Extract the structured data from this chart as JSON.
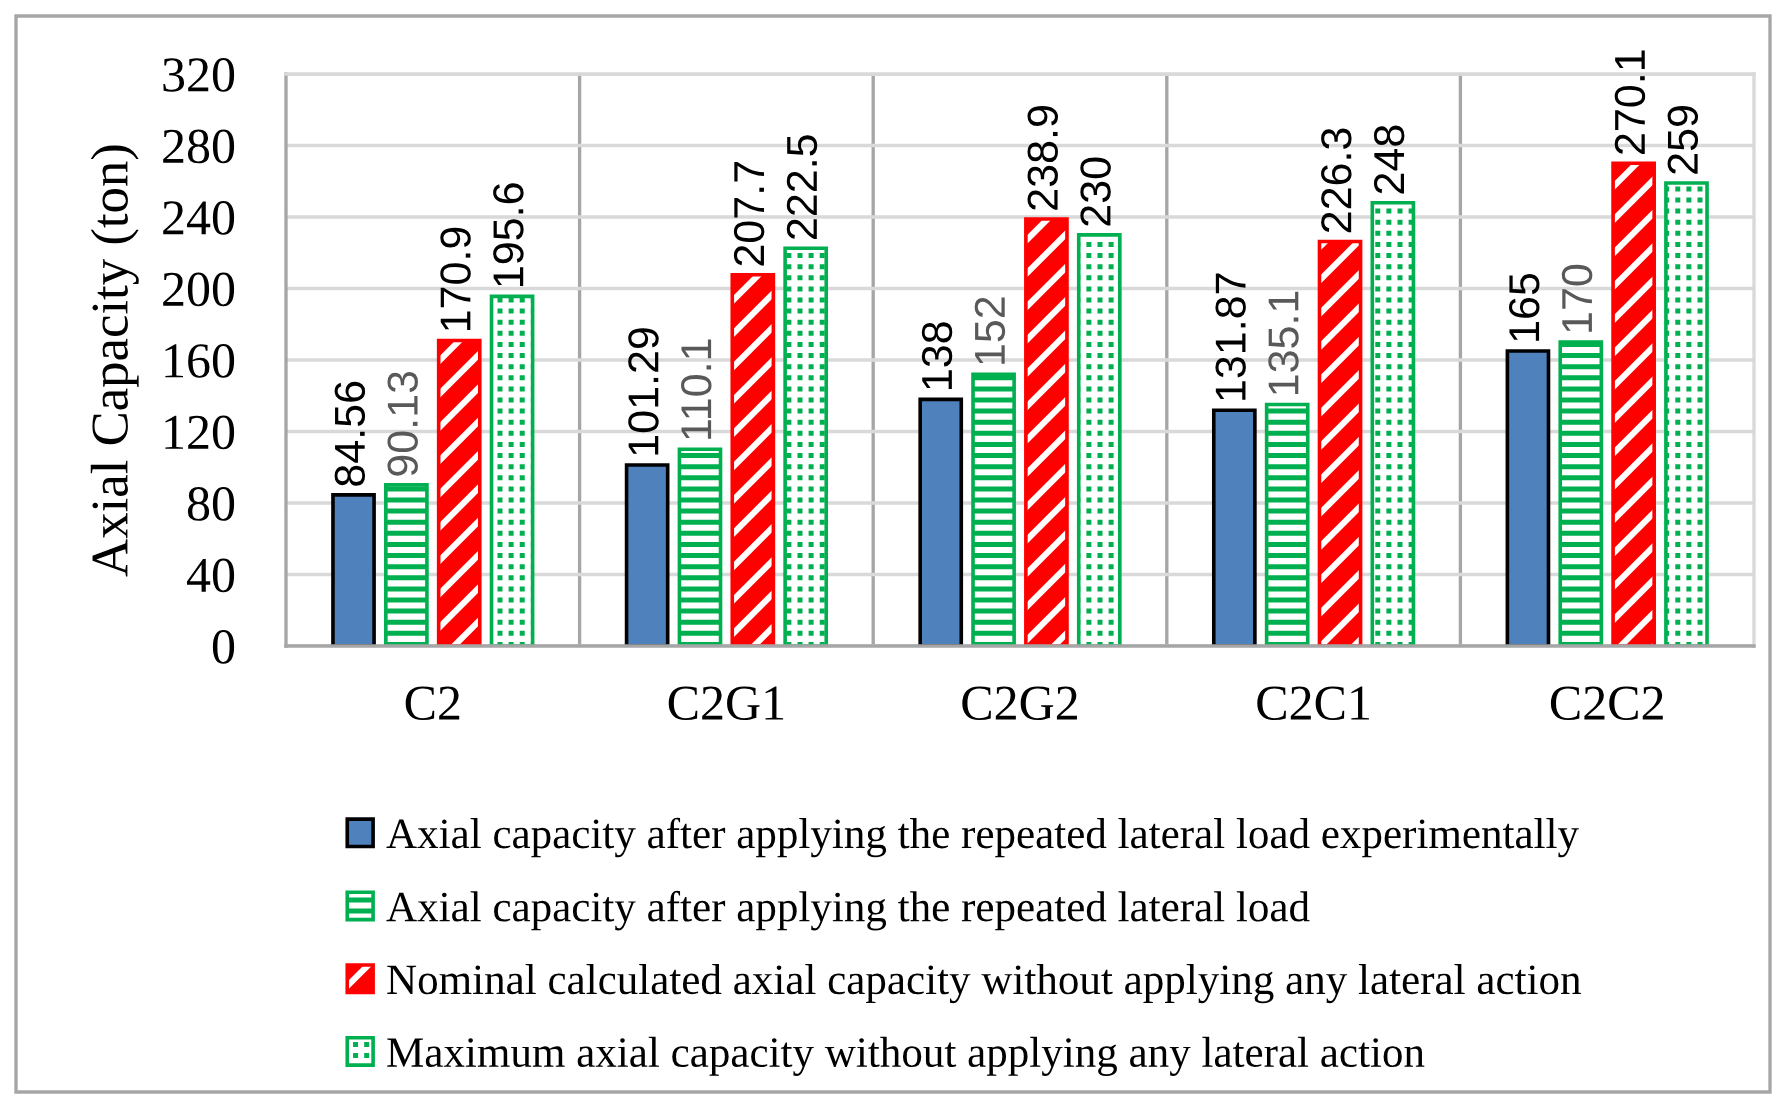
{
  "chart_data": {
    "type": "bar",
    "ylabel": "Axial Capacity (ton)",
    "categories": [
      "C2",
      "C2G1",
      "C2G2",
      "C2C1",
      "C2C2"
    ],
    "series": [
      {
        "name": "Axial capacity after applying the repeated lateral load experimentally",
        "color": "#4f81bd",
        "values": [
          84.56,
          101.29,
          138,
          131.87,
          165
        ]
      },
      {
        "name": "Axial capacity after applying the repeated lateral load",
        "color": "#00b050",
        "values": [
          90.13,
          110.1,
          152,
          135.1,
          170
        ]
      },
      {
        "name": "Nominal calculated axial capacity without applying any lateral action",
        "color": "#ff0000",
        "values": [
          170.9,
          207.7,
          238.9,
          226.3,
          270.1
        ]
      },
      {
        "name": "Maximum axial capacity without applying any lateral action",
        "color": "#00b050",
        "values": [
          195.6,
          222.5,
          230,
          248,
          259
        ]
      }
    ],
    "ylim": [
      0,
      320
    ],
    "yticks": [
      0,
      40,
      80,
      120,
      160,
      200,
      240,
      280,
      320
    ],
    "grid": true,
    "legend": "bottom",
    "data_labels": true
  }
}
